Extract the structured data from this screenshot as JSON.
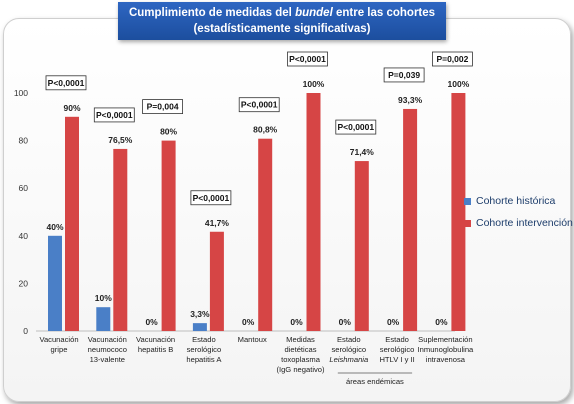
{
  "title": {
    "line1_pre": "Cumplimiento de medidas del ",
    "line1_em": "bundel",
    "line1_post": " entre las cohortes",
    "line2": "(estadísticamente significativas)"
  },
  "colors": {
    "historica": "#4a7fc7",
    "intervencion": "#d64545"
  },
  "chart_data": {
    "type": "bar",
    "categories": [
      [
        "Vacunación",
        "gripe"
      ],
      [
        "Vacunación",
        "neumococo",
        "13-valente"
      ],
      [
        "Vacunación",
        "hepatitis B"
      ],
      [
        "Estado",
        "serológico",
        "hepatitis A"
      ],
      [
        "Mantoux"
      ],
      [
        "Medidas",
        "dietéticas",
        "toxoplasma",
        "(IgG negativo)"
      ],
      [
        "Estado",
        "serológico",
        "Leishmania"
      ],
      [
        "Estado",
        "serológico",
        "HTLV I y II"
      ],
      [
        "Suplementación",
        "Inmunoglobulina",
        "intravenosa"
      ]
    ],
    "series": [
      {
        "name": "Cohorte histórica",
        "values": [
          40,
          10,
          0,
          3.3,
          0,
          0,
          0,
          0,
          0
        ],
        "labels": [
          "40%",
          "10%",
          "0%",
          "3,3%",
          "0%",
          "0%",
          "0%",
          "0%",
          "0%"
        ]
      },
      {
        "name": "Cohorte intervención",
        "values": [
          90,
          76.5,
          80,
          41.7,
          80.8,
          100,
          71.4,
          93.3,
          100
        ],
        "labels": [
          "90%",
          "76,5%",
          "80%",
          "41,7%",
          "80,8%",
          "100%",
          "71,4%",
          "93,3%",
          "100%"
        ]
      }
    ],
    "pvalues": [
      "P<0,0001",
      "P<0,0001",
      "P=0,004",
      "P<0,0001",
      "P<0,0001",
      "P<0,0001",
      "P<0,0001",
      "P=0,039",
      "P=0,002"
    ],
    "yticks": [
      0,
      20,
      40,
      60,
      80,
      100
    ],
    "ylim": [
      0,
      100
    ],
    "group_annotation": "áreas endémicas",
    "legend_position": "right"
  }
}
